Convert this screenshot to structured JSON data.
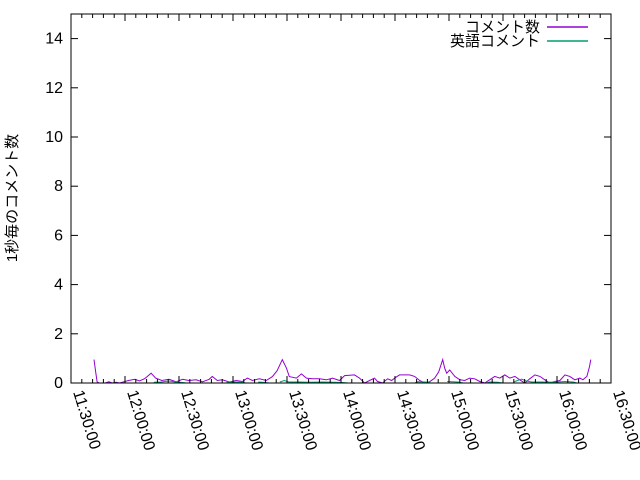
{
  "figure": {
    "background": "#ffffff",
    "border_color": "#000000",
    "text_color": "#000000"
  },
  "chart_data": {
    "type": "line",
    "title": "",
    "xlabel": "",
    "ylabel": "1秒毎のコメント数",
    "grid": false,
    "legend_position": "top-right-inside",
    "ylim": [
      0,
      15
    ],
    "y_ticks": [
      0,
      2,
      4,
      6,
      8,
      10,
      12,
      14
    ],
    "xlim_minutes": [
      0,
      300
    ],
    "x_tick_interval_minutes": 30,
    "x_minor_per_interval": 5,
    "x_tick_labels": [
      "11:30:00",
      "12:00:00",
      "12:30:00",
      "13:00:00",
      "13:30:00",
      "14:00:00",
      "14:30:00",
      "15:00:00",
      "15:30:00",
      "16:00:00",
      "16:30:00"
    ],
    "series": [
      {
        "name": "コメント数",
        "color": "#9400d3",
        "points": [
          [
            12.8,
            0.95
          ],
          [
            13.6,
            0.5
          ],
          [
            14.5,
            0.05
          ],
          [
            15.6,
            0
          ],
          [
            19,
            0
          ],
          [
            21,
            0.05
          ],
          [
            23,
            0
          ],
          [
            25,
            0.03
          ],
          [
            27,
            0
          ],
          [
            32,
            0.1
          ],
          [
            35.5,
            0.15
          ],
          [
            38,
            0.08
          ],
          [
            41,
            0.18
          ],
          [
            44.5,
            0.4
          ],
          [
            47,
            0.2
          ],
          [
            50.5,
            0.1
          ],
          [
            54.5,
            0.15
          ],
          [
            58.5,
            0.05
          ],
          [
            62,
            0.15
          ],
          [
            65.5,
            0.1
          ],
          [
            69.5,
            0.13
          ],
          [
            73,
            0.05
          ],
          [
            76.8,
            0.15
          ],
          [
            78.5,
            0.27
          ],
          [
            81.3,
            0.1
          ],
          [
            84,
            0.13
          ],
          [
            88,
            0.04
          ],
          [
            91.8,
            0.1
          ],
          [
            95.2,
            0.06
          ],
          [
            98,
            0.2
          ],
          [
            100.7,
            0.1
          ],
          [
            104.6,
            0.17
          ],
          [
            108.5,
            0.1
          ],
          [
            111.9,
            0.26
          ],
          [
            114.5,
            0.5
          ],
          [
            117.4,
            0.95
          ],
          [
            119.7,
            0.6
          ],
          [
            121.3,
            0.26
          ],
          [
            125.2,
            0.2
          ],
          [
            128,
            0.37
          ],
          [
            130.8,
            0.2
          ],
          [
            134.1,
            0.17
          ],
          [
            138,
            0.17
          ],
          [
            141.9,
            0.13
          ],
          [
            145.3,
            0.2
          ],
          [
            149.2,
            0.1
          ],
          [
            152,
            0.3
          ],
          [
            157.5,
            0.33
          ],
          [
            160.3,
            0.2
          ],
          [
            163.1,
            0
          ],
          [
            165.9,
            0.1
          ],
          [
            168.6,
            0.2
          ],
          [
            170.3,
            0.06
          ],
          [
            173.1,
            0
          ],
          [
            175.9,
            0.17
          ],
          [
            178.1,
            0.1
          ],
          [
            179.8,
            0.2
          ],
          [
            182.5,
            0.33
          ],
          [
            188.1,
            0.33
          ],
          [
            190.9,
            0.27
          ],
          [
            193.7,
            0.1
          ],
          [
            196.5,
            0
          ],
          [
            199.2,
            0.05
          ],
          [
            202,
            0.2
          ],
          [
            204.3,
            0.45
          ],
          [
            206.5,
            0.95
          ],
          [
            207.6,
            0.6
          ],
          [
            208.7,
            0.4
          ],
          [
            210.4,
            0.53
          ],
          [
            213.2,
            0.27
          ],
          [
            216,
            0.13
          ],
          [
            218.7,
            0.1
          ],
          [
            221.5,
            0.2
          ],
          [
            224.3,
            0.17
          ],
          [
            227.1,
            0.06
          ],
          [
            229.9,
            0
          ],
          [
            232.6,
            0.13
          ],
          [
            235.4,
            0.27
          ],
          [
            238.2,
            0.2
          ],
          [
            241,
            0.33
          ],
          [
            243.8,
            0.2
          ],
          [
            246.6,
            0.27
          ],
          [
            249.3,
            0.13
          ],
          [
            252.1,
            0
          ],
          [
            254.9,
            0.17
          ],
          [
            257.7,
            0.33
          ],
          [
            260.5,
            0.27
          ],
          [
            263.2,
            0.13
          ],
          [
            266,
            0
          ],
          [
            268.8,
            0.06
          ],
          [
            271.6,
            0.1
          ],
          [
            274.4,
            0.33
          ],
          [
            277.1,
            0.27
          ],
          [
            279.9,
            0.13
          ],
          [
            282.7,
            0.2
          ],
          [
            284.4,
            0.13
          ],
          [
            286.6,
            0.27
          ],
          [
            288,
            0.65
          ],
          [
            288.8,
            0.95
          ]
        ]
      },
      {
        "name": "英語コメント",
        "color": "#009e73",
        "points": [
          [
            46,
            0.03
          ],
          [
            50,
            0.04
          ],
          [
            54.5,
            0.08
          ],
          [
            58,
            0.04
          ],
          [
            62,
            0.02
          ],
          [
            64,
            0
          ],
          null,
          [
            86,
            0
          ],
          [
            88,
            0.04
          ],
          [
            95,
            0.03
          ],
          [
            97,
            0
          ],
          null,
          [
            104,
            0.04
          ],
          [
            108,
            0.02
          ],
          [
            110,
            0
          ],
          null,
          [
            116,
            0.04
          ],
          [
            118.5,
            0.1
          ],
          [
            121,
            0.04
          ],
          [
            127,
            0.04
          ],
          [
            132,
            0.03
          ],
          [
            140,
            0.04
          ],
          [
            146,
            0.03
          ],
          [
            151,
            0.02
          ],
          [
            154,
            0
          ],
          null,
          [
            191,
            0
          ],
          [
            192.5,
            0.05
          ],
          [
            197,
            0.04
          ],
          [
            200,
            0
          ],
          null,
          [
            209,
            0.06
          ],
          [
            215,
            0.04
          ],
          [
            218,
            0
          ],
          null,
          [
            231,
            0
          ],
          [
            232.5,
            0.04
          ],
          [
            237,
            0.03
          ],
          [
            240,
            0
          ],
          null,
          [
            246,
            0.04
          ],
          [
            248,
            0.1
          ],
          [
            250.4,
            0.16
          ],
          [
            253,
            0.08
          ],
          [
            256,
            0.04
          ],
          [
            262,
            0.04
          ],
          [
            268,
            0.03
          ],
          [
            274.4,
            0.06
          ],
          [
            279,
            0.04
          ],
          [
            281,
            0
          ]
        ]
      }
    ]
  }
}
